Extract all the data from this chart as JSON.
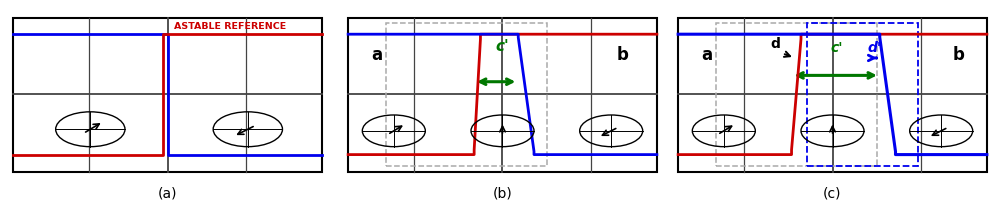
{
  "fig_width": 10.0,
  "fig_height": 2.17,
  "dpi": 100,
  "blue": "#0000ee",
  "red": "#cc0000",
  "green": "#007700",
  "grid_color": "#444444",
  "dash_gray": "#aaaaaa",
  "dash_blue": "#0000ee",
  "astable_text": "ASTABLE REFERENCE",
  "panel_labels": [
    "(a)",
    "(b)",
    "(c)"
  ]
}
